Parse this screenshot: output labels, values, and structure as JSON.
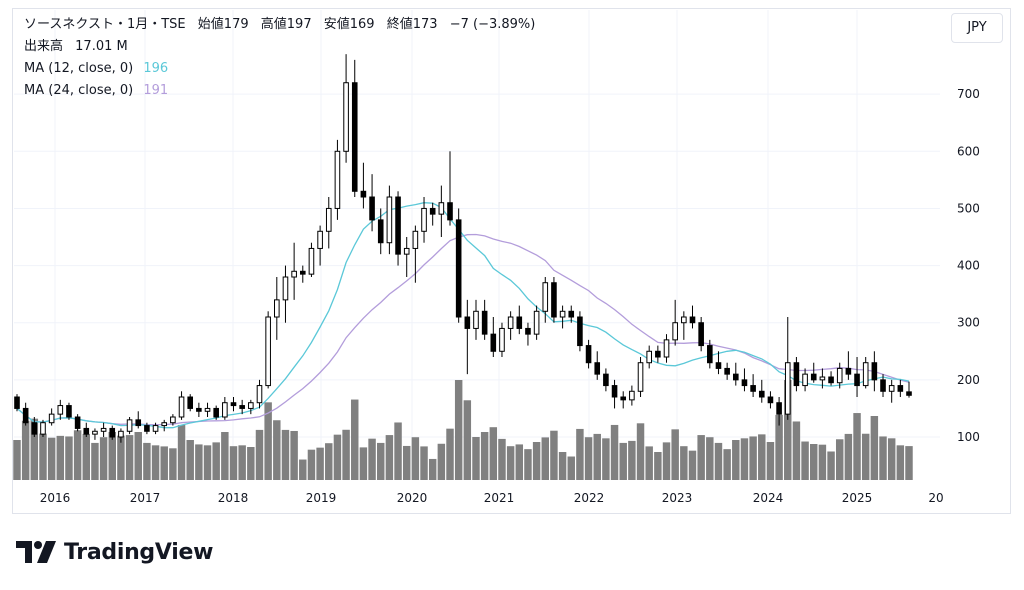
{
  "legend": {
    "symbol": "ソースネクスト・1月・TSE",
    "open_label": "始値",
    "open": "179",
    "high_label": "高値",
    "high": "197",
    "low_label": "安値",
    "low": "169",
    "close_label": "終値",
    "close": "173",
    "change": "−7 (−3.89%)",
    "volume_label": "出来高",
    "volume": "17.01 M",
    "ma12_label": "MA (12, close, 0)",
    "ma12_value": "196",
    "ma24_label": "MA (24, close, 0)",
    "ma24_value": "191"
  },
  "currency": "JPY",
  "brand": {
    "name": "TradingView",
    "icon": "tradingview-logo-icon"
  },
  "colors": {
    "up_body": "#ffffff",
    "down_body": "#000000",
    "candle_outline": "#000000",
    "volume": "#808080",
    "ma12": "#5bc8d8",
    "ma24": "#b39ddb",
    "grid": "#f0f3fa",
    "text": "#131722"
  },
  "chart_data": {
    "type": "candlestick",
    "interval": "1 month",
    "y_axis": {
      "ticks": [
        100,
        200,
        300,
        400,
        500,
        600,
        700
      ],
      "range": [
        50,
        780
      ],
      "side": "right"
    },
    "x_axis": {
      "tick_labels": [
        "2016",
        "2017",
        "2018",
        "2019",
        "2020",
        "2021",
        "2022",
        "2023",
        "2024",
        "2025",
        "20"
      ]
    },
    "grid": true,
    "series": [
      {
        "name": "MA (12, close, 0)",
        "last": 196
      },
      {
        "name": "MA (24, close, 0)",
        "last": 191
      }
    ],
    "candles_note": "monthly OHLC approx. from Aug 2015 to Aug 2025",
    "ohlc": [
      [
        170,
        175,
        145,
        150
      ],
      [
        150,
        160,
        120,
        125
      ],
      [
        125,
        135,
        100,
        105
      ],
      [
        105,
        130,
        100,
        125
      ],
      [
        125,
        150,
        120,
        140
      ],
      [
        140,
        165,
        130,
        155
      ],
      [
        155,
        160,
        130,
        135
      ],
      [
        135,
        140,
        110,
        115
      ],
      [
        115,
        125,
        100,
        105
      ],
      [
        105,
        115,
        95,
        110
      ],
      [
        110,
        125,
        100,
        115
      ],
      [
        115,
        120,
        95,
        100
      ],
      [
        100,
        115,
        90,
        110
      ],
      [
        110,
        135,
        105,
        130
      ],
      [
        130,
        145,
        115,
        120
      ],
      [
        120,
        125,
        105,
        110
      ],
      [
        110,
        125,
        105,
        120
      ],
      [
        120,
        130,
        110,
        125
      ],
      [
        125,
        140,
        120,
        135
      ],
      [
        135,
        180,
        130,
        170
      ],
      [
        170,
        175,
        145,
        150
      ],
      [
        150,
        160,
        135,
        145
      ],
      [
        145,
        160,
        135,
        150
      ],
      [
        150,
        155,
        130,
        135
      ],
      [
        135,
        170,
        130,
        160
      ],
      [
        160,
        170,
        145,
        155
      ],
      [
        155,
        165,
        140,
        150
      ],
      [
        150,
        165,
        140,
        160
      ],
      [
        160,
        200,
        150,
        190
      ],
      [
        190,
        320,
        185,
        310
      ],
      [
        310,
        380,
        270,
        340
      ],
      [
        340,
        400,
        300,
        380
      ],
      [
        380,
        440,
        340,
        390
      ],
      [
        390,
        400,
        370,
        385
      ],
      [
        385,
        440,
        380,
        430
      ],
      [
        430,
        470,
        400,
        460
      ],
      [
        460,
        520,
        430,
        500
      ],
      [
        500,
        620,
        480,
        600
      ],
      [
        600,
        770,
        580,
        720
      ],
      [
        720,
        760,
        520,
        530
      ],
      [
        530,
        580,
        500,
        520
      ],
      [
        520,
        560,
        460,
        480
      ],
      [
        480,
        500,
        420,
        440
      ],
      [
        440,
        540,
        420,
        520
      ],
      [
        520,
        530,
        400,
        420
      ],
      [
        420,
        450,
        380,
        430
      ],
      [
        430,
        470,
        370,
        460
      ],
      [
        460,
        520,
        440,
        500
      ],
      [
        500,
        510,
        470,
        490
      ],
      [
        490,
        540,
        450,
        510
      ],
      [
        510,
        600,
        470,
        480
      ],
      [
        480,
        500,
        300,
        310
      ],
      [
        310,
        340,
        210,
        290
      ],
      [
        290,
        340,
        270,
        320
      ],
      [
        320,
        340,
        270,
        280
      ],
      [
        280,
        310,
        240,
        250
      ],
      [
        250,
        300,
        240,
        290
      ],
      [
        290,
        320,
        270,
        310
      ],
      [
        310,
        330,
        280,
        290
      ],
      [
        290,
        300,
        260,
        280
      ],
      [
        280,
        330,
        270,
        320
      ],
      [
        320,
        380,
        300,
        370
      ],
      [
        370,
        380,
        300,
        310
      ],
      [
        310,
        330,
        290,
        320
      ],
      [
        320,
        330,
        300,
        310
      ],
      [
        310,
        320,
        250,
        260
      ],
      [
        260,
        270,
        220,
        230
      ],
      [
        230,
        250,
        200,
        210
      ],
      [
        210,
        220,
        180,
        190
      ],
      [
        190,
        200,
        150,
        170
      ],
      [
        170,
        180,
        150,
        165
      ],
      [
        165,
        190,
        155,
        180
      ],
      [
        180,
        240,
        170,
        230
      ],
      [
        230,
        260,
        220,
        250
      ],
      [
        250,
        260,
        230,
        240
      ],
      [
        240,
        280,
        230,
        270
      ],
      [
        270,
        340,
        260,
        300
      ],
      [
        300,
        320,
        270,
        310
      ],
      [
        310,
        330,
        290,
        300
      ],
      [
        300,
        310,
        250,
        260
      ],
      [
        260,
        270,
        220,
        230
      ],
      [
        230,
        250,
        210,
        220
      ],
      [
        220,
        230,
        200,
        210
      ],
      [
        210,
        230,
        190,
        200
      ],
      [
        200,
        220,
        180,
        190
      ],
      [
        190,
        210,
        170,
        180
      ],
      [
        180,
        200,
        160,
        170
      ],
      [
        170,
        180,
        150,
        160
      ],
      [
        160,
        170,
        120,
        140
      ],
      [
        140,
        310,
        130,
        230
      ],
      [
        230,
        240,
        180,
        190
      ],
      [
        190,
        220,
        180,
        210
      ],
      [
        210,
        230,
        195,
        200
      ],
      [
        200,
        220,
        185,
        205
      ],
      [
        205,
        215,
        190,
        195
      ],
      [
        195,
        230,
        185,
        220
      ],
      [
        220,
        250,
        200,
        210
      ],
      [
        210,
        240,
        170,
        190
      ],
      [
        190,
        240,
        185,
        230
      ],
      [
        230,
        250,
        180,
        200
      ],
      [
        200,
        210,
        170,
        180
      ],
      [
        180,
        200,
        160,
        190
      ],
      [
        190,
        200,
        170,
        180
      ],
      [
        179,
        197,
        169,
        173
      ]
    ]
  }
}
